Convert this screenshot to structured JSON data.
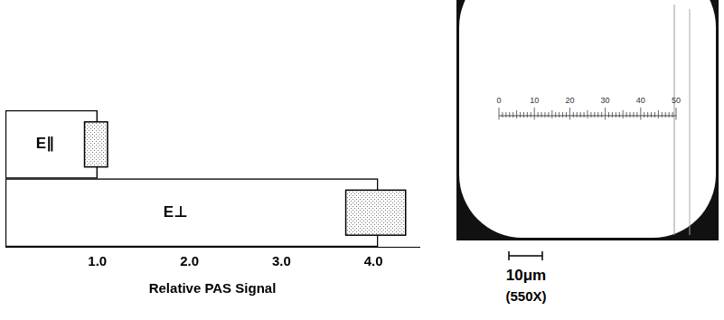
{
  "chart_data": {
    "type": "bar",
    "orientation": "horizontal",
    "categories": [
      "E∥",
      "E⊥"
    ],
    "values": [
      1.0,
      4.05
    ],
    "error_ranges": [
      [
        0.86,
        1.11
      ],
      [
        3.7,
        4.35
      ]
    ],
    "x_label": "Relative PAS Signal",
    "color": "#ffffff",
    "xlim": [
      0,
      4.5
    ],
    "xticks": [
      {
        "value": 1,
        "label": "1.0"
      },
      {
        "value": 2,
        "label": "2.0"
      },
      {
        "value": 3,
        "label": "3.0"
      },
      {
        "value": 4,
        "label": "4.0"
      }
    ],
    "grid": false
  },
  "micrograph": {
    "reticle_labels": [
      0,
      10,
      20,
      30,
      40,
      50
    ],
    "scale_bar": "10μm",
    "magnification": "(550X)"
  }
}
